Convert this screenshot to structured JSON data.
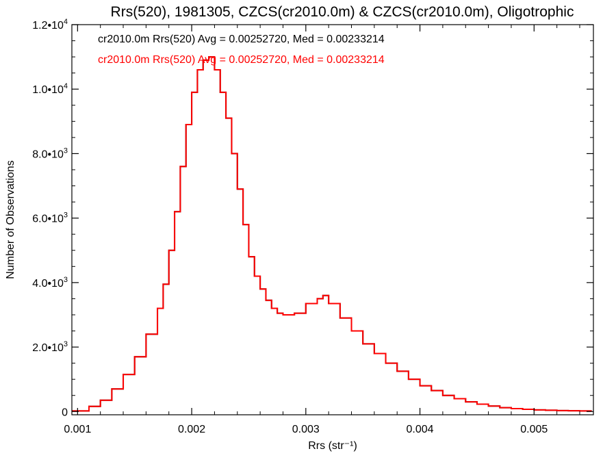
{
  "chart_data": {
    "type": "line",
    "title": "Rrs(520), 1981305, CZCS(cr2010.0m) & CZCS(cr2010.0m), Oligotrophic",
    "xlabel": "Rrs (str⁻¹)",
    "ylabel": "Number of Observations",
    "xlim": [
      0.00095,
      0.00552
    ],
    "ylim": [
      -100,
      12000
    ],
    "x_ticks": [
      {
        "value": 0.001,
        "label": "0.001"
      },
      {
        "value": 0.002,
        "label": "0.002"
      },
      {
        "value": 0.003,
        "label": "0.003"
      },
      {
        "value": 0.004,
        "label": "0.004"
      },
      {
        "value": 0.005,
        "label": "0.005"
      }
    ],
    "y_ticks": [
      {
        "value": 0,
        "label": "0",
        "exp": ""
      },
      {
        "value": 2000,
        "label": "2.0•10",
        "exp": "3"
      },
      {
        "value": 4000,
        "label": "4.0•10",
        "exp": "3"
      },
      {
        "value": 6000,
        "label": "6.0•10",
        "exp": "3"
      },
      {
        "value": 8000,
        "label": "8.0•10",
        "exp": "3"
      },
      {
        "value": 10000,
        "label": "1.0•10",
        "exp": "4"
      },
      {
        "value": 12000,
        "label": "1.2•10",
        "exp": "4"
      }
    ],
    "grid": false,
    "legend_position": "top-left",
    "series": [
      {
        "name": "cr2010.0m Rrs(520) Avg = 0.00252720, Med = 0.00233214",
        "color": "#000000",
        "x": [
          0.00095,
          0.0011,
          0.0012,
          0.0013,
          0.0014,
          0.0015,
          0.0016,
          0.0017,
          0.00175,
          0.0018,
          0.00185,
          0.0019,
          0.00195,
          0.002,
          0.00205,
          0.0021,
          0.00215,
          0.0022,
          0.00225,
          0.0023,
          0.00235,
          0.0024,
          0.00245,
          0.0025,
          0.00255,
          0.0026,
          0.00265,
          0.0027,
          0.00275,
          0.0028,
          0.0029,
          0.003,
          0.0031,
          0.00315,
          0.0032,
          0.0033,
          0.0034,
          0.0035,
          0.0036,
          0.0037,
          0.0038,
          0.0039,
          0.004,
          0.0041,
          0.0042,
          0.0043,
          0.0044,
          0.0045,
          0.0046,
          0.0047,
          0.0048,
          0.0049,
          0.005,
          0.0051,
          0.0052,
          0.0053,
          0.0054,
          0.0055
        ],
        "y": [
          20,
          160,
          350,
          700,
          1150,
          1700,
          2400,
          3200,
          3950,
          5000,
          6200,
          7600,
          8900,
          9900,
          10600,
          10900,
          11000,
          10600,
          9900,
          9100,
          8000,
          6900,
          5800,
          4800,
          4200,
          3800,
          3450,
          3200,
          3050,
          3000,
          3050,
          3350,
          3500,
          3600,
          3350,
          2900,
          2500,
          2100,
          1800,
          1500,
          1250,
          1000,
          800,
          650,
          500,
          400,
          300,
          230,
          170,
          120,
          90,
          70,
          50,
          40,
          30,
          25,
          20,
          15
        ]
      },
      {
        "name": "cr2010.0m Rrs(520) Avg = 0.00252720, Med = 0.00233214",
        "color": "#ff0000",
        "x": [
          0.00095,
          0.0011,
          0.0012,
          0.0013,
          0.0014,
          0.0015,
          0.0016,
          0.0017,
          0.00175,
          0.0018,
          0.00185,
          0.0019,
          0.00195,
          0.002,
          0.00205,
          0.0021,
          0.00215,
          0.0022,
          0.00225,
          0.0023,
          0.00235,
          0.0024,
          0.00245,
          0.0025,
          0.00255,
          0.0026,
          0.00265,
          0.0027,
          0.00275,
          0.0028,
          0.0029,
          0.003,
          0.0031,
          0.00315,
          0.0032,
          0.0033,
          0.0034,
          0.0035,
          0.0036,
          0.0037,
          0.0038,
          0.0039,
          0.004,
          0.0041,
          0.0042,
          0.0043,
          0.0044,
          0.0045,
          0.0046,
          0.0047,
          0.0048,
          0.0049,
          0.005,
          0.0051,
          0.0052,
          0.0053,
          0.0054,
          0.0055
        ],
        "y": [
          20,
          160,
          350,
          700,
          1150,
          1700,
          2400,
          3200,
          3950,
          5000,
          6200,
          7600,
          8900,
          9900,
          10600,
          10900,
          11000,
          10600,
          9900,
          9100,
          8000,
          6900,
          5800,
          4800,
          4200,
          3800,
          3450,
          3200,
          3050,
          3000,
          3050,
          3350,
          3500,
          3600,
          3350,
          2900,
          2500,
          2100,
          1800,
          1500,
          1250,
          1000,
          800,
          650,
          500,
          400,
          300,
          230,
          170,
          120,
          90,
          70,
          50,
          40,
          30,
          25,
          20,
          15
        ]
      }
    ]
  }
}
